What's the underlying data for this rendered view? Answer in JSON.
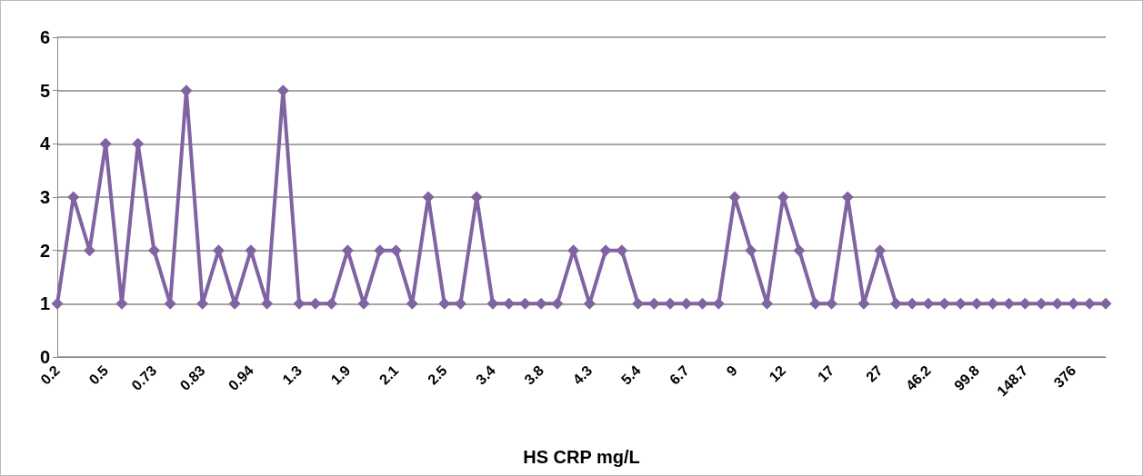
{
  "chart_data": {
    "type": "line",
    "xlabel": "HS CRP mg/L",
    "categories": [
      "0.2",
      null,
      null,
      "0.5",
      null,
      null,
      "0.73",
      null,
      null,
      "0.83",
      null,
      null,
      "0.94",
      null,
      null,
      "1.3",
      null,
      null,
      "1.9",
      null,
      null,
      "2.1",
      null,
      null,
      "2.5",
      null,
      null,
      "3.4",
      null,
      null,
      "3.8",
      null,
      null,
      "4.3",
      null,
      null,
      "5.4",
      null,
      null,
      "6.7",
      null,
      null,
      "9",
      null,
      null,
      "12",
      null,
      null,
      "17",
      null,
      null,
      "27",
      null,
      null,
      "46.2",
      null,
      null,
      "99.8",
      null,
      null,
      "148.7",
      null,
      null,
      "376",
      null,
      null
    ],
    "series": [
      {
        "color": "#8064a2",
        "values": [
          1,
          3,
          2,
          4,
          1,
          4,
          2,
          1,
          5,
          1,
          2,
          1,
          2,
          1,
          5,
          1,
          1,
          1,
          2,
          1,
          2,
          2,
          1,
          3,
          1,
          1,
          3,
          1,
          1,
          1,
          1,
          1,
          2,
          1,
          2,
          2,
          1,
          1,
          1,
          1,
          1,
          1,
          3,
          2,
          1,
          3,
          2,
          1,
          1,
          3,
          1,
          2,
          1,
          1,
          1,
          1,
          1,
          1,
          1,
          1,
          1,
          1,
          1,
          1,
          1,
          1
        ]
      }
    ],
    "ylim": [
      0,
      6
    ],
    "yticks": [
      0,
      1,
      2,
      3,
      4,
      5,
      6
    ],
    "grid": "y",
    "marker": "diamond",
    "line_style": "solid"
  }
}
